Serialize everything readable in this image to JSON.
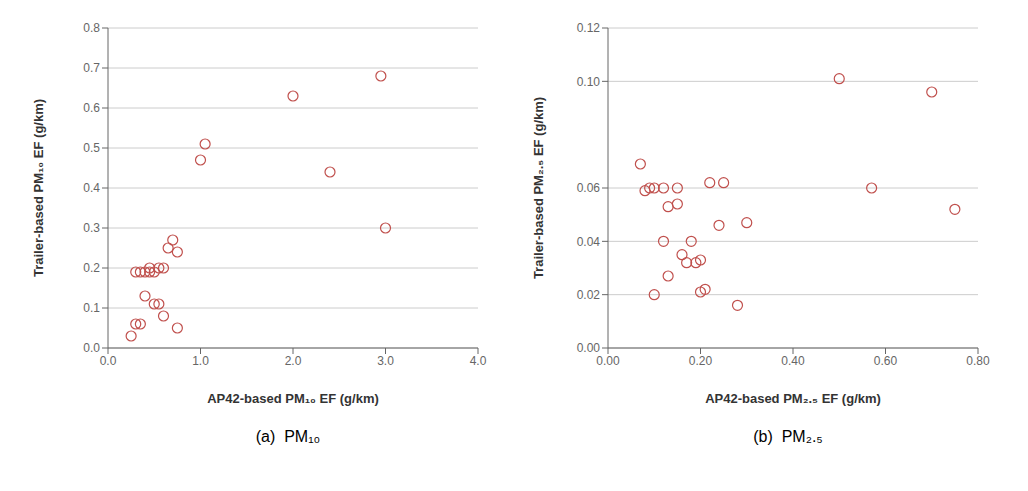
{
  "chart_data": [
    {
      "type": "scatter",
      "title": "(a)  PM₁₀",
      "x_label": "AP42-based PM₁₀  EF (g/km)",
      "y_label": "Trailer-based PM₁₀ EF (g/km)",
      "x": [
        0.25,
        0.3,
        0.3,
        0.35,
        0.35,
        0.4,
        0.4,
        0.45,
        0.45,
        0.5,
        0.5,
        0.55,
        0.55,
        0.6,
        0.6,
        0.65,
        0.7,
        0.75,
        0.75,
        1.0,
        1.05,
        2.0,
        2.4,
        2.95,
        3.0
      ],
      "values": [
        0.03,
        0.19,
        0.06,
        0.06,
        0.19,
        0.19,
        0.13,
        0.2,
        0.19,
        0.11,
        0.19,
        0.11,
        0.2,
        0.08,
        0.2,
        0.25,
        0.27,
        0.24,
        0.05,
        0.47,
        0.51,
        0.63,
        0.44,
        0.68,
        0.3
      ],
      "color": "#c0504d",
      "marker": "open_circle",
      "grid": "y",
      "xlim": [
        0.0,
        4.0
      ],
      "ylim": [
        0.0,
        0.8
      ],
      "xticks": [
        {
          "value": 0.0,
          "label": "0.0"
        },
        {
          "value": 1.0,
          "label": "1.0"
        },
        {
          "value": 2.0,
          "label": "2.0"
        },
        {
          "value": 3.0,
          "label": "3.0"
        },
        {
          "value": 4.0,
          "label": "4.0"
        }
      ],
      "yticks": [
        {
          "value": 0.0,
          "label": "0.0"
        },
        0.1,
        0.2,
        0.3,
        0.4,
        0.5,
        0.6,
        0.7,
        0.8
      ]
    },
    {
      "type": "scatter",
      "title": "(b)  PM₂.₅",
      "x_label": "AP42-based PM₂.₅ EF (g/km)",
      "y_label": "Trailer-based PM₂.₅ EF (g/km)",
      "x": [
        0.07,
        0.08,
        0.09,
        0.1,
        0.1,
        0.12,
        0.12,
        0.13,
        0.13,
        0.15,
        0.15,
        0.16,
        0.17,
        0.18,
        0.19,
        0.2,
        0.2,
        0.21,
        0.22,
        0.24,
        0.25,
        0.28,
        0.3,
        0.5,
        0.57,
        0.7,
        0.75
      ],
      "values": [
        0.069,
        0.059,
        0.06,
        0.02,
        0.06,
        0.04,
        0.06,
        0.027,
        0.053,
        0.06,
        0.054,
        0.035,
        0.032,
        0.04,
        0.032,
        0.021,
        0.033,
        0.022,
        0.062,
        0.046,
        0.062,
        0.016,
        0.047,
        0.101,
        0.06,
        0.096,
        0.052
      ],
      "color": "#c0504d",
      "marker": "open_circle",
      "grid": "y",
      "xlim": [
        0.0,
        0.8
      ],
      "ylim": [
        0.0,
        0.12
      ],
      "xticks": [
        {
          "value": 0.0,
          "label": "0.00"
        },
        {
          "value": 0.2,
          "label": "0.20"
        },
        {
          "value": 0.4,
          "label": "0.40"
        },
        {
          "value": 0.6,
          "label": "0.60"
        },
        {
          "value": 0.8,
          "label": "0.80"
        }
      ],
      "yticks": [
        {
          "value": 0.0,
          "label": "0.00"
        },
        0.02,
        0.04,
        0.06,
        {
          "value": 0.1,
          "label": "0.10"
        },
        0.12
      ]
    }
  ]
}
